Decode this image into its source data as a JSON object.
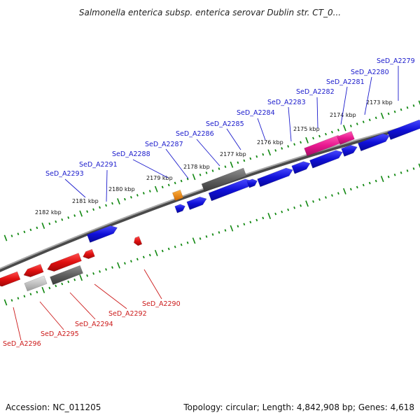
{
  "header": {
    "title": "Salmonella enterica subsp. enterica serovar Dublin str. CT_0..."
  },
  "footer": {
    "accession": "Accession: NC_011205",
    "summary": "Topology: circular; Length: 4,842,908 bp; Genes: 4,618"
  },
  "colors": {
    "forward_gene": "#1010d8",
    "reverse_gene": "#e01010",
    "forward_label": "#1a1acc",
    "reverse_label": "#cc1a1a",
    "tick": "#118811",
    "backbone": "#7a7a7a",
    "pseudo_gene": "#5f5f5f",
    "light_gray": "#c2c2c2",
    "highlight": "#e8178f",
    "orange": "#f08400"
  },
  "map": {
    "tick_labels": [
      "2182 kbp",
      "2181 kbp",
      "2180 kbp",
      "2179 kbp",
      "2178 kbp",
      "2177 kbp",
      "2176 kbp",
      "2175 kbp",
      "2174 kbp",
      "2173 kbp"
    ],
    "forward_genes": [
      "SeD_A2293",
      "SeD_A2291",
      "SeD_A2288",
      "SeD_A2287",
      "SeD_A2286",
      "SeD_A2285",
      "SeD_A2284",
      "SeD_A2283",
      "SeD_A2282",
      "SeD_A2281",
      "SeD_A2280",
      "SeD_A2279"
    ],
    "reverse_genes": [
      "SeD_A2296",
      "SeD_A2295",
      "SeD_A2294",
      "SeD_A2292",
      "SeD_A2290"
    ]
  }
}
